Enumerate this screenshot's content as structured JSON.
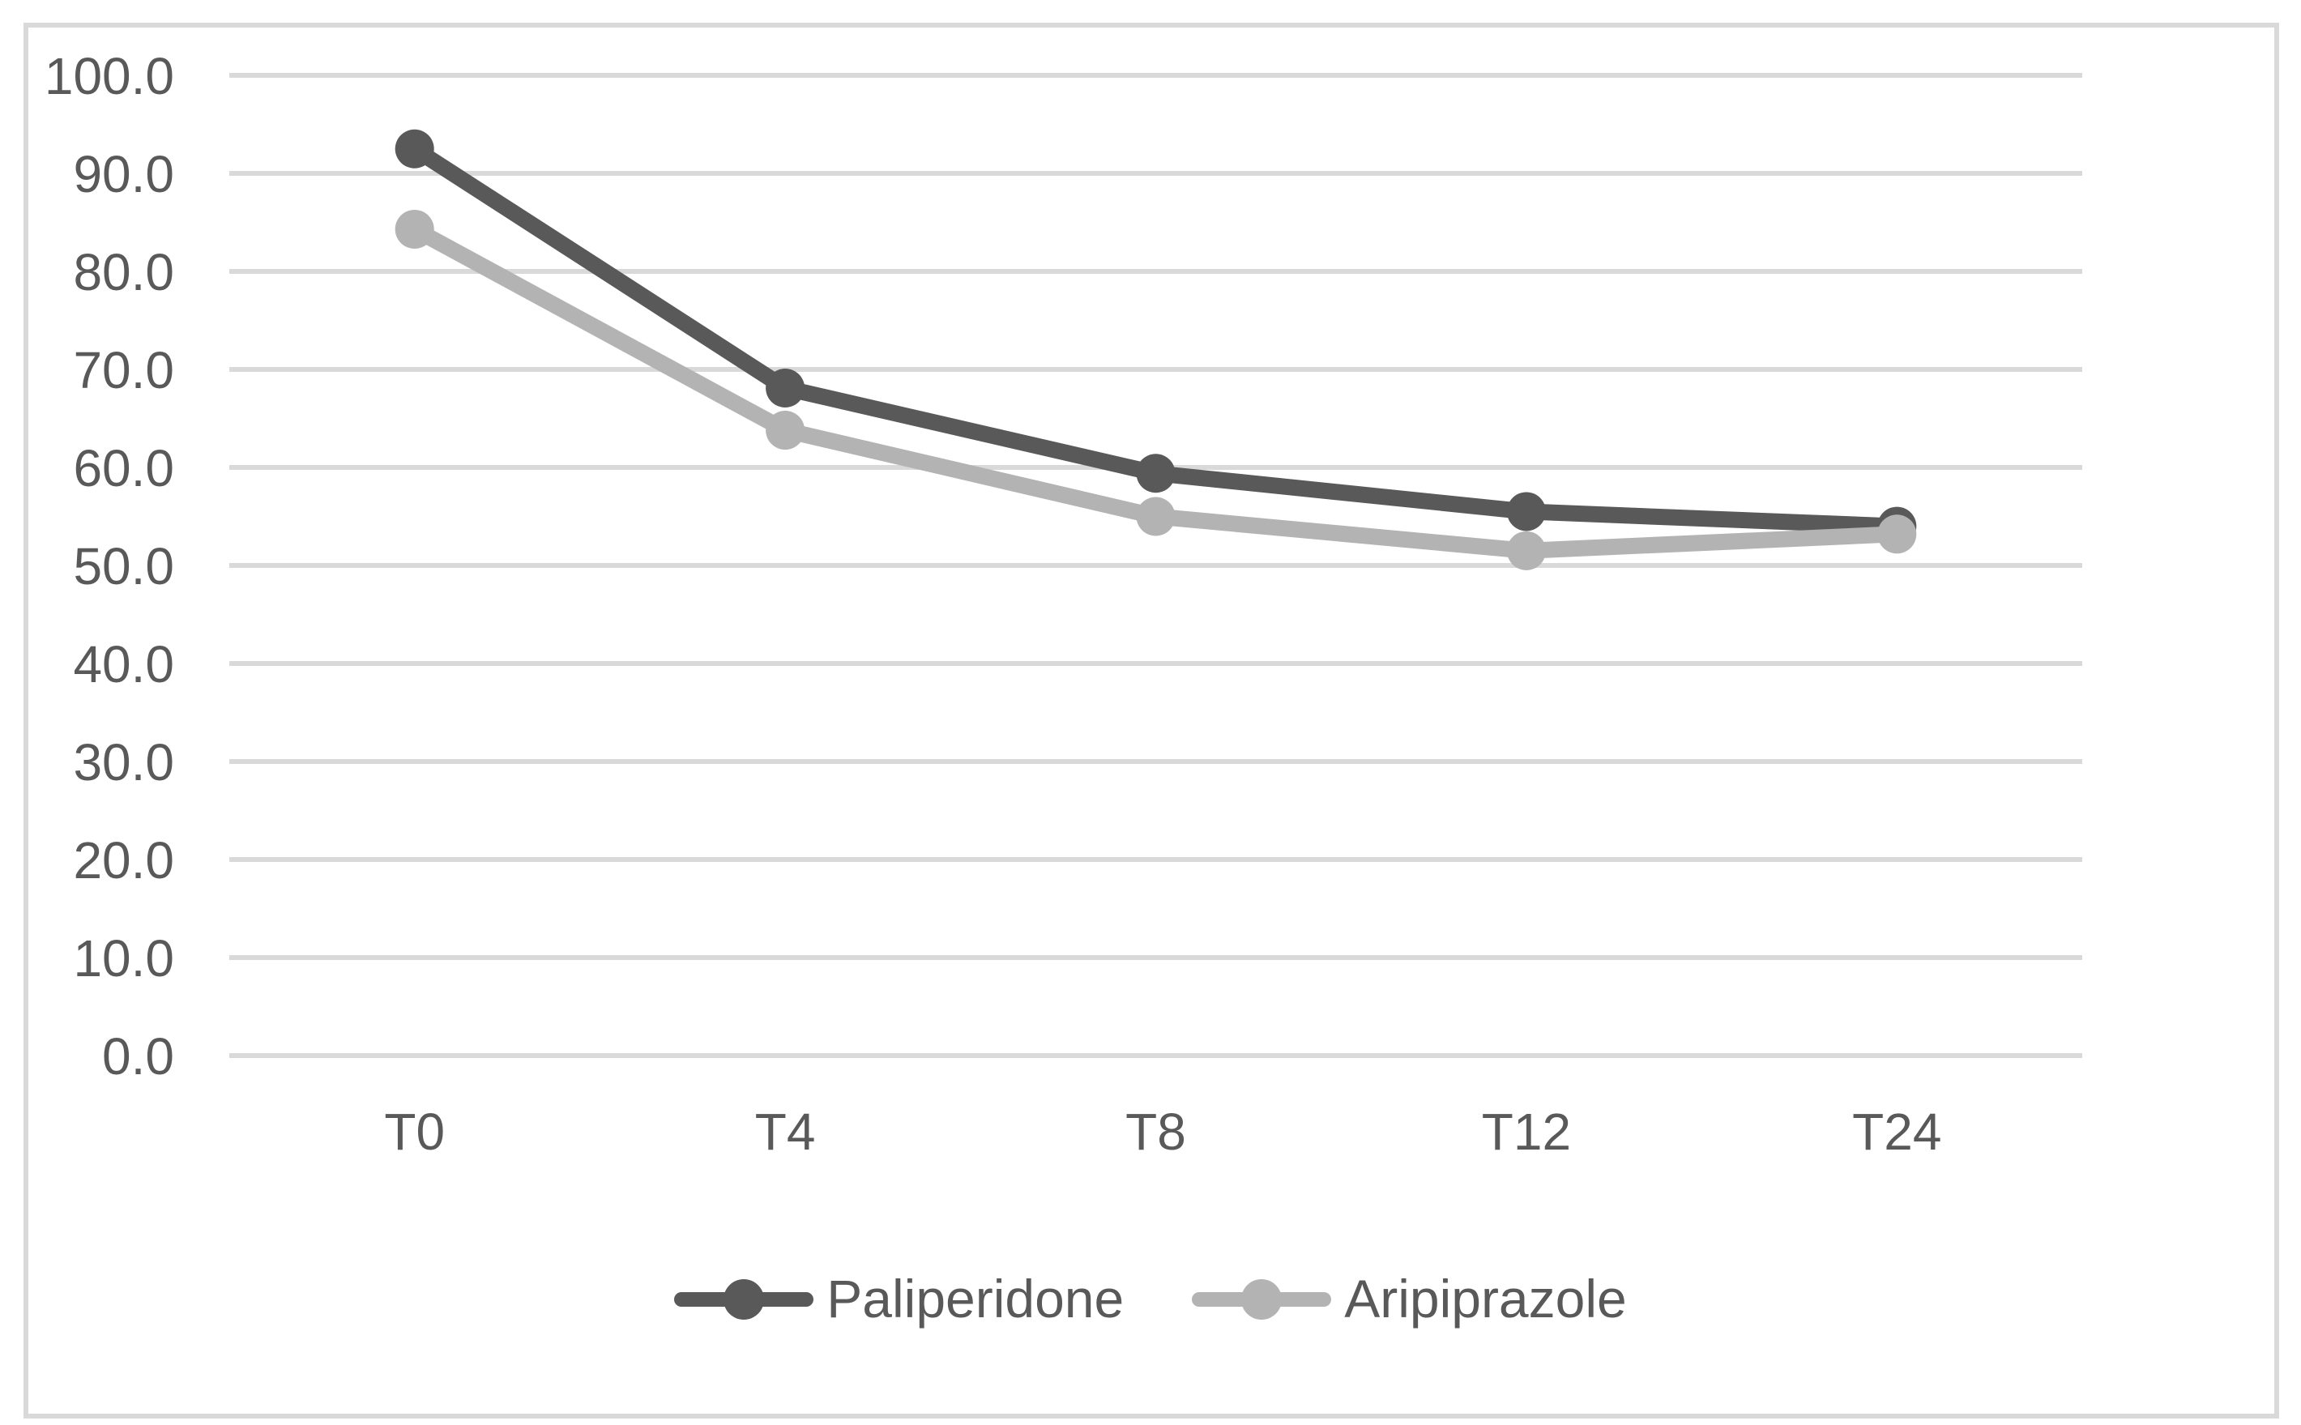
{
  "chart_data": {
    "type": "line",
    "title": "",
    "xlabel": "",
    "ylabel": "",
    "categories": [
      "T0",
      "T4",
      "T8",
      "T12",
      "T24"
    ],
    "series": [
      {
        "name": "Paliperidone",
        "color": "#595959",
        "values": [
          92.5,
          68.1,
          59.4,
          55.5,
          54.0
        ]
      },
      {
        "name": "Aripiprazole",
        "color": "#b3b3b3",
        "values": [
          84.3,
          63.8,
          55.0,
          51.5,
          53.2
        ]
      }
    ],
    "ylim": [
      0,
      100
    ],
    "y_ticks": [
      0,
      10,
      20,
      30,
      40,
      50,
      60,
      70,
      80,
      90,
      100
    ],
    "y_tick_labels": [
      "0.0",
      "10.0",
      "20.0",
      "30.0",
      "40.0",
      "50.0",
      "60.0",
      "70.0",
      "80.0",
      "90.0",
      "100.0"
    ],
    "grid": "horizontal",
    "legend_position": "bottom"
  },
  "colors": {
    "background": "#ffffff",
    "chart_border": "#d9d9d9",
    "gridline": "#d9d9d9",
    "axis_text": "#595959",
    "legend_text": "#595959"
  },
  "legend": {
    "items": [
      {
        "label": "Paliperidone"
      },
      {
        "label": "Aripiprazole"
      }
    ]
  }
}
